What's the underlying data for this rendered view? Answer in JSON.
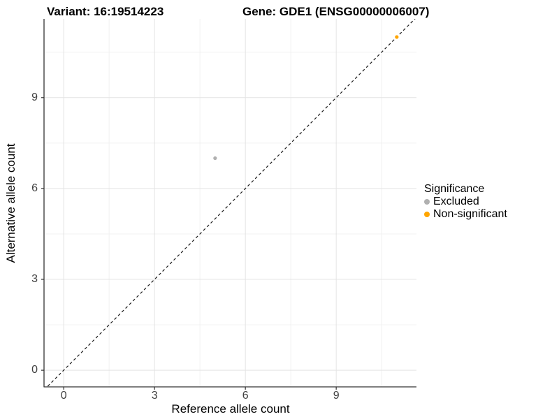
{
  "titles": {
    "variant": "Variant: 16:19514223",
    "gene": "Gene: GDE1 (ENSG00000006007)"
  },
  "chart_data": {
    "type": "scatter",
    "title": "Variant: 16:19514223 — Gene: GDE1 (ENSG00000006007)",
    "xlabel": "Reference allele count",
    "ylabel": "Alternative allele count",
    "x_ticks": [
      0,
      3,
      6,
      9
    ],
    "y_ticks": [
      0,
      3,
      6,
      9
    ],
    "x_minor_ticks": [
      1.5,
      4.5,
      7.5,
      10.5
    ],
    "y_minor_ticks": [
      1.5,
      4.5,
      7.5,
      10.5
    ],
    "xlim": [
      -0.65,
      11.65
    ],
    "ylim": [
      -0.55,
      11.6
    ],
    "grid": true,
    "identity_line": {
      "equation": "y = x",
      "style": "dashed",
      "color": "#1A1A1A"
    },
    "series": [
      {
        "name": "Excluded",
        "color": "#B0B0B0",
        "points": [
          {
            "x": 5,
            "y": 7
          }
        ]
      },
      {
        "name": "Non-significant",
        "color": "#FFA500",
        "points": [
          {
            "x": 11,
            "y": 11
          }
        ]
      }
    ],
    "legend": {
      "title": "Significance",
      "position": "right"
    }
  },
  "style_colors": {
    "axis_line": "#333333",
    "tick_label": "#404040",
    "grid_major": "#E4E4E4",
    "grid_minor": "#F1F1F1",
    "background": "#FFFFFF"
  }
}
